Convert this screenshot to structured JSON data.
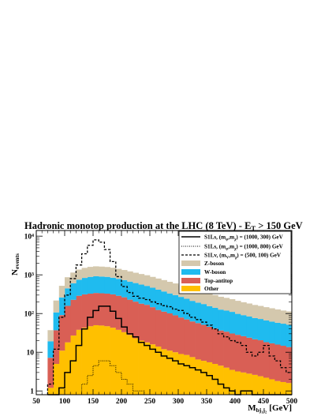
{
  "chart_data": {
    "type": "area",
    "title": "Hadronic monotop production at the LHC (8 TeV) - ",
    "title_met": "E",
    "title_met_sub": "T",
    "title_cut": " > 150 GeV",
    "ylabel": "N",
    "ylabel_sub": "events",
    "xlabel": "M",
    "xlabel_sub": "bj₁j₂",
    "xlabel_unit": "[GeV]",
    "xlim": [
      50,
      500
    ],
    "ylim": [
      0.8,
      14000
    ],
    "yscale": "log",
    "x_ticks": [
      50,
      100,
      150,
      200,
      250,
      300,
      350,
      400,
      450,
      500
    ],
    "x_tick_labels": [
      "50",
      "100",
      "150",
      "200",
      "250",
      "300",
      "350",
      "400",
      "450",
      "500"
    ],
    "y_ticks": [
      1,
      10,
      100,
      1000,
      10000
    ],
    "y_tick_labels": [
      "1",
      "10",
      "10²",
      "10³",
      "10⁴"
    ],
    "legend_position": "top-right",
    "bin_edges": [
      70,
      80,
      90,
      100,
      110,
      120,
      130,
      140,
      150,
      160,
      170,
      180,
      190,
      200,
      210,
      220,
      230,
      240,
      250,
      260,
      270,
      280,
      290,
      300,
      310,
      320,
      330,
      340,
      350,
      360,
      370,
      380,
      390,
      400,
      410,
      420,
      430,
      440,
      450,
      460,
      470,
      480,
      490,
      500
    ],
    "stacked_series": [
      {
        "name": "Other",
        "color": "#ffc000",
        "values": [
          1.2,
          5,
          11,
          18,
          27,
          38,
          43,
          47,
          50,
          49,
          47,
          43,
          38,
          33,
          28,
          23,
          20,
          18,
          16,
          14,
          12,
          11,
          10,
          9,
          8.5,
          7.5,
          6.5,
          6,
          5.5,
          5,
          4.5,
          4,
          3.5,
          3.2,
          3,
          2.8,
          2.6,
          2.4,
          2.2,
          2,
          1.8,
          1.7,
          1.6
        ]
      },
      {
        "name": "Top-antitop",
        "color": "#d95f55",
        "values": [
          6,
          32,
          80,
          140,
          200,
          250,
          270,
          280,
          290,
          285,
          280,
          270,
          250,
          230,
          200,
          180,
          160,
          150,
          130,
          110,
          100,
          90,
          80,
          70,
          62,
          55,
          50,
          45,
          40,
          36,
          32,
          30,
          27,
          25,
          23,
          21,
          19,
          18,
          16,
          15,
          14,
          13,
          12
        ]
      },
      {
        "name": "W-boson",
        "color": "#1fbbef",
        "values": [
          12,
          70,
          170,
          290,
          380,
          460,
          520,
          560,
          580,
          570,
          560,
          530,
          500,
          470,
          440,
          410,
          380,
          350,
          320,
          290,
          260,
          230,
          210,
          190,
          170,
          150,
          135,
          125,
          110,
          100,
          90,
          85,
          80,
          70,
          65,
          60,
          55,
          52,
          48,
          45,
          42,
          40,
          38
        ]
      },
      {
        "name": "Z-boson",
        "color": "#d4c8ad",
        "values": [
          18,
          110,
          260,
          420,
          540,
          620,
          680,
          720,
          740,
          730,
          710,
          680,
          640,
          600,
          560,
          520,
          490,
          460,
          420,
          390,
          360,
          330,
          300,
          270,
          250,
          230,
          210,
          190,
          175,
          160,
          145,
          135,
          125,
          115,
          105,
          98,
          90,
          85,
          80,
          75,
          70,
          65,
          62
        ]
      }
    ],
    "signal_series": [
      {
        "name": "S1Ls, (m",
        "name_sub1": "φ",
        "name_mid": ",m",
        "name_sub2": "χ",
        "name_tail": ") = (1000, 300) GeV",
        "style": "solid",
        "values": [
          0,
          0,
          1.2,
          3,
          6,
          15,
          40,
          80,
          120,
          155,
          155,
          115,
          75,
          45,
          30,
          25,
          18,
          15,
          12,
          10,
          8,
          7,
          6,
          5,
          4.5,
          4,
          3.5,
          3,
          2.5,
          2,
          1.5,
          1.2,
          1,
          0,
          1,
          1,
          0,
          0,
          0,
          0,
          0,
          0,
          0
        ]
      },
      {
        "name": "S1Ls, (m",
        "name_sub1": "φ",
        "name_mid": ",m",
        "name_sub2": "χ",
        "name_tail": ") = (1000, 800) GeV",
        "style": "dotted",
        "values": [
          0,
          0,
          0,
          0,
          0,
          0,
          1.5,
          2.5,
          4.5,
          6,
          6,
          4.5,
          3,
          2,
          1.5,
          1,
          1,
          0,
          0,
          0,
          0,
          0,
          0,
          0,
          0,
          0,
          0,
          0,
          0,
          0,
          0,
          0,
          0,
          0,
          0,
          0,
          0,
          0,
          0,
          0,
          0,
          0,
          0
        ]
      },
      {
        "name": "S1Lv, (m",
        "name_sub1": "V",
        "name_mid": ",m",
        "name_sub2": "χ",
        "name_tail": ") = (500, 100) GeV",
        "style": "dashed",
        "values": [
          1.5,
          12,
          80,
          300,
          800,
          1800,
          3500,
          5800,
          8000,
          7000,
          4500,
          2200,
          900,
          500,
          350,
          280,
          250,
          230,
          200,
          180,
          160,
          150,
          130,
          120,
          100,
          80,
          70,
          60,
          50,
          40,
          30,
          25,
          20,
          18,
          15,
          10,
          8,
          10,
          15,
          8,
          6,
          4,
          3
        ]
      }
    ]
  }
}
